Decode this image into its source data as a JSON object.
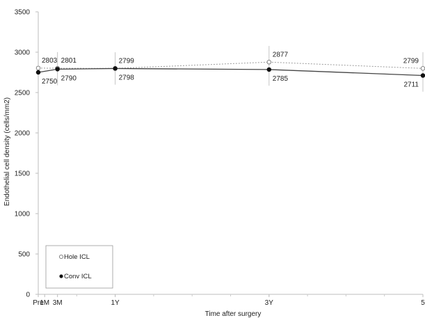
{
  "chart_data": {
    "type": "line",
    "title": "",
    "xlabel": "Time after surgery",
    "ylabel": "Endothelial cell density (cells/mm2)",
    "ylim": [
      0,
      3500
    ],
    "yticks": [
      0,
      500,
      1000,
      1500,
      2000,
      2500,
      3000,
      3500
    ],
    "ytick_labels": [
      "0",
      "500",
      "1000",
      "1500",
      "2000",
      "2500",
      "3000",
      "3500"
    ],
    "x": [
      0,
      1,
      3,
      12,
      36,
      60
    ],
    "xlim": [
      0,
      60
    ],
    "xtick_labels": [
      "Pre",
      "1M",
      "3M",
      "1Y",
      "3Y",
      "5"
    ],
    "grid": false,
    "legend_position": "bottom-left",
    "series": [
      {
        "name": "Hole ICL",
        "marker": "open-circle",
        "line_style": "dotted",
        "color": "#9a9a9a",
        "values": [
          2803,
          null,
          2801,
          2799,
          2877,
          2799
        ],
        "labels": [
          "2803",
          "",
          "2801",
          "2799",
          "2877",
          "2799"
        ]
      },
      {
        "name": "Conv ICL",
        "marker": "filled-circle",
        "line_style": "solid",
        "color": "#444444",
        "values": [
          2750,
          null,
          2790,
          2798,
          2785,
          2711
        ],
        "labels": [
          "2750",
          "",
          "2790",
          "2798",
          "2785",
          "2711"
        ]
      }
    ]
  }
}
